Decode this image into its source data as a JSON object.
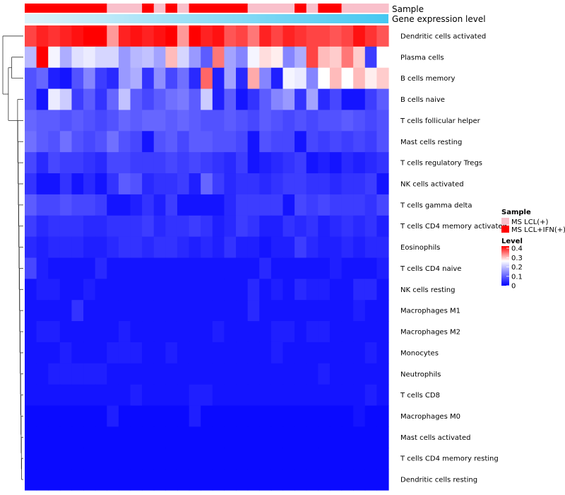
{
  "chart_data": {
    "type": "heatmap",
    "title": "",
    "annotation_tracks": [
      {
        "name": "Sample",
        "label": "Sample"
      },
      {
        "name": "Gene expression level",
        "label": "Gene expression level"
      }
    ],
    "sample_groups": [
      {
        "label": "MS LCL(+)",
        "color": "#f9c0cb"
      },
      {
        "label": "MS LCL+IFN(+)",
        "color": "#ff0000"
      }
    ],
    "sample_track": [
      1,
      1,
      1,
      1,
      1,
      1,
      1,
      0,
      0,
      0,
      1,
      0,
      1,
      0,
      1,
      1,
      1,
      1,
      1,
      0,
      0,
      0,
      0,
      1,
      0,
      1,
      1,
      0,
      0,
      0,
      0
    ],
    "expression_track_colors": [
      "#dff3fb",
      "#45c8f1"
    ],
    "legend": {
      "sample_title": "Sample",
      "level_title": "Level",
      "level_ticks": [
        "0.4",
        "0.3",
        "0.2",
        "0.1",
        "0"
      ],
      "level_min": 0,
      "level_max": 0.4,
      "colors": {
        "low": "#0000ff",
        "mid": "#ffffff",
        "high": "#ff0000"
      },
      "mid_value": 0.25
    },
    "rows": [
      "Dendritic cells activated",
      "Plasma cells",
      "B cells memory",
      "B cells naive",
      "T cells follicular helper",
      "Mast cells resting",
      "T cells regulatory  Tregs",
      "NK cells activated",
      "T cells gamma delta",
      "T cells CD4 memory activated",
      "Eosinophils",
      "T cells CD4 naive",
      "NK cells resting",
      "Macrophages M1",
      "Macrophages M2",
      "Monocytes",
      "Neutrophils",
      "T cells CD8",
      "Macrophages M0",
      "Mast cells activated",
      "T cells CD4 memory resting",
      "Dendritic cells resting"
    ],
    "n_columns": 31,
    "values": [
      [
        0.36,
        0.38,
        0.37,
        0.38,
        0.39,
        0.4,
        0.4,
        0.31,
        0.38,
        0.39,
        0.38,
        0.39,
        0.4,
        0.31,
        0.4,
        0.38,
        0.39,
        0.35,
        0.36,
        0.33,
        0.38,
        0.36,
        0.38,
        0.37,
        0.36,
        0.36,
        0.35,
        0.36,
        0.39,
        0.37,
        0.35
      ],
      [
        0.18,
        0.4,
        0.24,
        0.17,
        0.22,
        0.23,
        0.21,
        0.21,
        0.15,
        0.18,
        0.19,
        0.16,
        0.29,
        0.21,
        0.15,
        0.09,
        0.33,
        0.16,
        0.13,
        0.24,
        0.27,
        0.26,
        0.13,
        0.17,
        0.36,
        0.29,
        0.28,
        0.33,
        0.28,
        0.06,
        0.25
      ],
      [
        0.08,
        0.1,
        0.03,
        0.02,
        0.08,
        0.13,
        0.06,
        0.04,
        0.15,
        0.17,
        0.05,
        0.14,
        0.07,
        0.11,
        0.04,
        0.34,
        0.03,
        0.16,
        0.04,
        0.3,
        0.13,
        0.03,
        0.24,
        0.23,
        0.13,
        0.25,
        0.29,
        0.25,
        0.29,
        0.26,
        0.28
      ],
      [
        0.08,
        0.02,
        0.23,
        0.2,
        0.06,
        0.09,
        0.05,
        0.1,
        0.19,
        0.09,
        0.07,
        0.09,
        0.11,
        0.12,
        0.09,
        0.2,
        0.03,
        0.09,
        0.02,
        0.05,
        0.09,
        0.13,
        0.15,
        0.05,
        0.16,
        0.04,
        0.07,
        0.02,
        0.02,
        0.06,
        0.09
      ],
      [
        0.1,
        0.09,
        0.09,
        0.08,
        0.09,
        0.08,
        0.07,
        0.08,
        0.1,
        0.09,
        0.1,
        0.1,
        0.09,
        0.1,
        0.09,
        0.08,
        0.08,
        0.09,
        0.08,
        0.07,
        0.09,
        0.08,
        0.07,
        0.08,
        0.07,
        0.08,
        0.08,
        0.09,
        0.08,
        0.07,
        0.08
      ],
      [
        0.11,
        0.09,
        0.08,
        0.11,
        0.08,
        0.07,
        0.08,
        0.11,
        0.08,
        0.07,
        0.02,
        0.08,
        0.09,
        0.07,
        0.09,
        0.09,
        0.08,
        0.08,
        0.07,
        0.02,
        0.08,
        0.07,
        0.07,
        0.02,
        0.07,
        0.06,
        0.07,
        0.06,
        0.07,
        0.06,
        0.08
      ],
      [
        0.07,
        0.04,
        0.07,
        0.06,
        0.06,
        0.05,
        0.04,
        0.07,
        0.07,
        0.06,
        0.06,
        0.06,
        0.07,
        0.06,
        0.07,
        0.06,
        0.05,
        0.04,
        0.06,
        0.02,
        0.03,
        0.04,
        0.05,
        0.06,
        0.02,
        0.03,
        0.02,
        0.04,
        0.03,
        0.04,
        0.05
      ],
      [
        0.05,
        0.02,
        0.02,
        0.05,
        0.02,
        0.04,
        0.02,
        0.05,
        0.09,
        0.08,
        0.04,
        0.05,
        0.05,
        0.06,
        0.03,
        0.1,
        0.06,
        0.04,
        0.05,
        0.05,
        0.04,
        0.05,
        0.06,
        0.06,
        0.05,
        0.05,
        0.04,
        0.05,
        0.05,
        0.06,
        0.02
      ],
      [
        0.09,
        0.07,
        0.07,
        0.08,
        0.07,
        0.07,
        0.06,
        0.02,
        0.02,
        0.03,
        0.05,
        0.03,
        0.06,
        0.02,
        0.02,
        0.02,
        0.02,
        0.04,
        0.06,
        0.06,
        0.06,
        0.06,
        0.02,
        0.07,
        0.06,
        0.07,
        0.06,
        0.06,
        0.06,
        0.05,
        0.07
      ],
      [
        0.06,
        0.04,
        0.05,
        0.05,
        0.05,
        0.04,
        0.04,
        0.05,
        0.05,
        0.05,
        0.06,
        0.04,
        0.05,
        0.05,
        0.06,
        0.05,
        0.03,
        0.04,
        0.06,
        0.05,
        0.03,
        0.03,
        0.05,
        0.04,
        0.05,
        0.03,
        0.04,
        0.05,
        0.04,
        0.05,
        0.03
      ],
      [
        0.04,
        0.03,
        0.04,
        0.04,
        0.04,
        0.03,
        0.03,
        0.04,
        0.05,
        0.05,
        0.04,
        0.05,
        0.05,
        0.04,
        0.03,
        0.04,
        0.03,
        0.05,
        0.03,
        0.03,
        0.02,
        0.03,
        0.03,
        0.06,
        0.04,
        0.03,
        0.03,
        0.04,
        0.03,
        0.04,
        0.04
      ],
      [
        0.07,
        0.03,
        0.02,
        0.02,
        0.02,
        0.02,
        0.04,
        0.02,
        0.02,
        0.02,
        0.02,
        0.02,
        0.02,
        0.02,
        0.02,
        0.02,
        0.02,
        0.02,
        0.02,
        0.02,
        0.04,
        0.02,
        0.02,
        0.02,
        0.02,
        0.02,
        0.03,
        0.02,
        0.02,
        0.02,
        0.03
      ],
      [
        0.02,
        0.03,
        0.03,
        0.02,
        0.02,
        0.03,
        0.02,
        0.02,
        0.02,
        0.02,
        0.02,
        0.02,
        0.02,
        0.02,
        0.02,
        0.02,
        0.02,
        0.02,
        0.02,
        0.04,
        0.02,
        0.03,
        0.02,
        0.04,
        0.03,
        0.03,
        0.02,
        0.02,
        0.04,
        0.04,
        0.02
      ],
      [
        0.02,
        0.02,
        0.02,
        0.02,
        0.05,
        0.02,
        0.02,
        0.02,
        0.02,
        0.02,
        0.02,
        0.02,
        0.02,
        0.02,
        0.02,
        0.02,
        0.02,
        0.02,
        0.02,
        0.04,
        0.02,
        0.02,
        0.02,
        0.02,
        0.02,
        0.02,
        0.02,
        0.02,
        0.03,
        0.02,
        0.02
      ],
      [
        0.02,
        0.03,
        0.03,
        0.02,
        0.02,
        0.02,
        0.02,
        0.02,
        0.03,
        0.02,
        0.02,
        0.02,
        0.02,
        0.02,
        0.02,
        0.02,
        0.03,
        0.02,
        0.02,
        0.02,
        0.02,
        0.03,
        0.03,
        0.02,
        0.03,
        0.03,
        0.02,
        0.02,
        0.02,
        0.02,
        0.02
      ],
      [
        0.02,
        0.02,
        0.02,
        0.03,
        0.02,
        0.02,
        0.02,
        0.03,
        0.03,
        0.03,
        0.02,
        0.02,
        0.03,
        0.02,
        0.02,
        0.02,
        0.02,
        0.02,
        0.02,
        0.02,
        0.02,
        0.03,
        0.02,
        0.02,
        0.02,
        0.02,
        0.02,
        0.02,
        0.02,
        0.03,
        0.02
      ],
      [
        0.02,
        0.02,
        0.03,
        0.03,
        0.03,
        0.03,
        0.03,
        0.02,
        0.02,
        0.02,
        0.02,
        0.02,
        0.02,
        0.02,
        0.02,
        0.02,
        0.02,
        0.02,
        0.02,
        0.02,
        0.02,
        0.02,
        0.02,
        0.02,
        0.02,
        0.03,
        0.02,
        0.02,
        0.02,
        0.02,
        0.02
      ],
      [
        0.02,
        0.02,
        0.02,
        0.02,
        0.02,
        0.02,
        0.02,
        0.02,
        0.02,
        0.03,
        0.02,
        0.02,
        0.02,
        0.02,
        0.03,
        0.03,
        0.02,
        0.02,
        0.02,
        0.02,
        0.02,
        0.02,
        0.02,
        0.02,
        0.02,
        0.02,
        0.02,
        0.02,
        0.02,
        0.03,
        0.02
      ],
      [
        0.01,
        0.01,
        0.01,
        0.01,
        0.01,
        0.01,
        0.01,
        0.03,
        0.01,
        0.01,
        0.01,
        0.01,
        0.01,
        0.01,
        0.03,
        0.01,
        0.01,
        0.01,
        0.01,
        0.01,
        0.01,
        0.01,
        0.01,
        0.01,
        0.01,
        0.01,
        0.01,
        0.01,
        0.02,
        0.01,
        0.01
      ],
      [
        0.01,
        0.01,
        0.01,
        0.01,
        0.01,
        0.01,
        0.01,
        0.01,
        0.01,
        0.01,
        0.01,
        0.01,
        0.01,
        0.01,
        0.01,
        0.01,
        0.01,
        0.01,
        0.01,
        0.01,
        0.01,
        0.01,
        0.01,
        0.01,
        0.01,
        0.01,
        0.01,
        0.01,
        0.01,
        0.01,
        0.01
      ],
      [
        0.01,
        0.01,
        0.01,
        0.01,
        0.01,
        0.01,
        0.01,
        0.01,
        0.01,
        0.01,
        0.01,
        0.01,
        0.01,
        0.01,
        0.01,
        0.01,
        0.01,
        0.01,
        0.01,
        0.01,
        0.01,
        0.01,
        0.01,
        0.01,
        0.01,
        0.01,
        0.01,
        0.01,
        0.01,
        0.01,
        0.01
      ],
      [
        0.01,
        0.01,
        0.01,
        0.01,
        0.01,
        0.01,
        0.01,
        0.01,
        0.01,
        0.01,
        0.01,
        0.01,
        0.01,
        0.01,
        0.01,
        0.01,
        0.01,
        0.01,
        0.01,
        0.01,
        0.01,
        0.01,
        0.01,
        0.01,
        0.01,
        0.01,
        0.01,
        0.01,
        0.01,
        0.01,
        0.01
      ]
    ]
  }
}
